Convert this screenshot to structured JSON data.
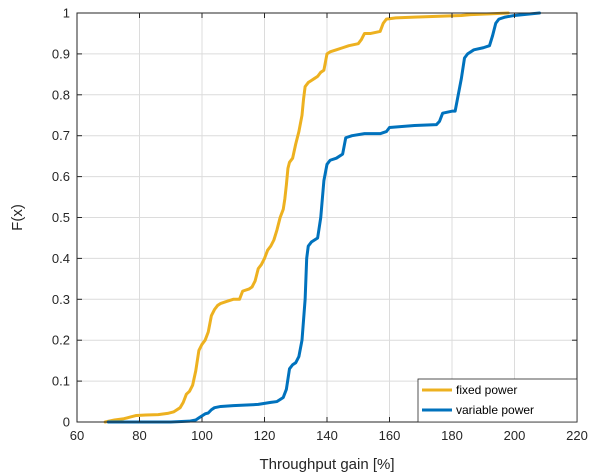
{
  "chart_data": {
    "type": "line",
    "title": "",
    "xlabel": "Throughput gain [%]",
    "ylabel": "F(x)",
    "xlim": [
      60,
      220
    ],
    "ylim": [
      0,
      1
    ],
    "xticks": [
      "60",
      "80",
      "100",
      "120",
      "140",
      "160",
      "180",
      "200",
      "220"
    ],
    "yticks": [
      "0",
      "0.1",
      "0.2",
      "0.3",
      "0.4",
      "0.5",
      "0.6",
      "0.7",
      "0.8",
      "0.9",
      "1"
    ],
    "grid": true,
    "legend_position": "bottom-right",
    "series": [
      {
        "name": "fixed power",
        "color": "#EDB120",
        "points": [
          [
            69,
            0
          ],
          [
            72,
            0.005
          ],
          [
            75,
            0.008
          ],
          [
            77,
            0.012
          ],
          [
            79,
            0.016
          ],
          [
            82,
            0.017
          ],
          [
            86,
            0.018
          ],
          [
            89,
            0.021
          ],
          [
            91,
            0.025
          ],
          [
            93,
            0.035
          ],
          [
            94,
            0.048
          ],
          [
            95,
            0.068
          ],
          [
            96,
            0.075
          ],
          [
            97,
            0.09
          ],
          [
            98,
            0.125
          ],
          [
            99,
            0.175
          ],
          [
            100,
            0.19
          ],
          [
            101,
            0.2
          ],
          [
            102,
            0.22
          ],
          [
            103,
            0.26
          ],
          [
            104,
            0.275
          ],
          [
            105,
            0.285
          ],
          [
            106,
            0.29
          ],
          [
            108,
            0.295
          ],
          [
            110,
            0.3
          ],
          [
            112,
            0.3
          ],
          [
            113,
            0.32
          ],
          [
            115,
            0.325
          ],
          [
            116,
            0.33
          ],
          [
            117,
            0.345
          ],
          [
            118,
            0.375
          ],
          [
            119,
            0.385
          ],
          [
            120,
            0.4
          ],
          [
            121,
            0.42
          ],
          [
            122,
            0.43
          ],
          [
            123,
            0.445
          ],
          [
            124,
            0.47
          ],
          [
            125,
            0.5
          ],
          [
            126,
            0.52
          ],
          [
            126.5,
            0.545
          ],
          [
            127,
            0.58
          ],
          [
            127.5,
            0.62
          ],
          [
            128,
            0.635
          ],
          [
            129,
            0.645
          ],
          [
            130,
            0.68
          ],
          [
            131,
            0.71
          ],
          [
            132,
            0.75
          ],
          [
            132.5,
            0.79
          ],
          [
            133,
            0.82
          ],
          [
            134,
            0.83
          ],
          [
            135,
            0.835
          ],
          [
            136,
            0.84
          ],
          [
            137,
            0.845
          ],
          [
            138,
            0.855
          ],
          [
            139,
            0.86
          ],
          [
            140,
            0.9
          ],
          [
            141,
            0.905
          ],
          [
            143,
            0.91
          ],
          [
            145,
            0.915
          ],
          [
            147,
            0.92
          ],
          [
            150,
            0.925
          ],
          [
            151,
            0.935
          ],
          [
            152,
            0.95
          ],
          [
            154,
            0.95
          ],
          [
            157,
            0.955
          ],
          [
            158,
            0.975
          ],
          [
            159,
            0.985
          ],
          [
            162,
            0.988
          ],
          [
            168,
            0.99
          ],
          [
            176,
            0.992
          ],
          [
            183,
            0.994
          ],
          [
            186,
            0.996
          ],
          [
            192,
            0.998
          ],
          [
            198,
            1.0
          ]
        ]
      },
      {
        "name": "variable power",
        "color": "#0072BD",
        "points": [
          [
            70,
            0
          ],
          [
            90,
            0
          ],
          [
            96,
            0.002
          ],
          [
            98,
            0.005
          ],
          [
            99,
            0.01
          ],
          [
            100,
            0.015
          ],
          [
            101,
            0.02
          ],
          [
            102,
            0.022
          ],
          [
            103,
            0.03
          ],
          [
            104,
            0.035
          ],
          [
            106,
            0.038
          ],
          [
            110,
            0.04
          ],
          [
            118,
            0.043
          ],
          [
            122,
            0.048
          ],
          [
            124,
            0.05
          ],
          [
            126,
            0.06
          ],
          [
            127,
            0.08
          ],
          [
            128,
            0.13
          ],
          [
            129,
            0.14
          ],
          [
            130,
            0.145
          ],
          [
            131,
            0.16
          ],
          [
            132,
            0.2
          ],
          [
            133,
            0.3
          ],
          [
            133.5,
            0.4
          ],
          [
            134,
            0.43
          ],
          [
            135,
            0.44
          ],
          [
            136,
            0.445
          ],
          [
            137,
            0.45
          ],
          [
            138,
            0.5
          ],
          [
            139,
            0.59
          ],
          [
            140,
            0.63
          ],
          [
            141,
            0.64
          ],
          [
            143,
            0.645
          ],
          [
            145,
            0.655
          ],
          [
            146,
            0.695
          ],
          [
            148,
            0.7
          ],
          [
            152,
            0.705
          ],
          [
            157,
            0.705
          ],
          [
            159,
            0.71
          ],
          [
            160,
            0.72
          ],
          [
            168,
            0.725
          ],
          [
            175,
            0.727
          ],
          [
            176,
            0.735
          ],
          [
            177,
            0.755
          ],
          [
            180,
            0.76
          ],
          [
            181,
            0.76
          ],
          [
            182,
            0.8
          ],
          [
            183,
            0.84
          ],
          [
            184,
            0.89
          ],
          [
            185,
            0.9
          ],
          [
            187,
            0.91
          ],
          [
            190,
            0.915
          ],
          [
            192,
            0.92
          ],
          [
            193,
            0.945
          ],
          [
            194,
            0.975
          ],
          [
            195,
            0.985
          ],
          [
            197,
            0.99
          ],
          [
            200,
            0.994
          ],
          [
            204,
            0.997
          ],
          [
            208,
            1.0
          ]
        ]
      }
    ]
  }
}
